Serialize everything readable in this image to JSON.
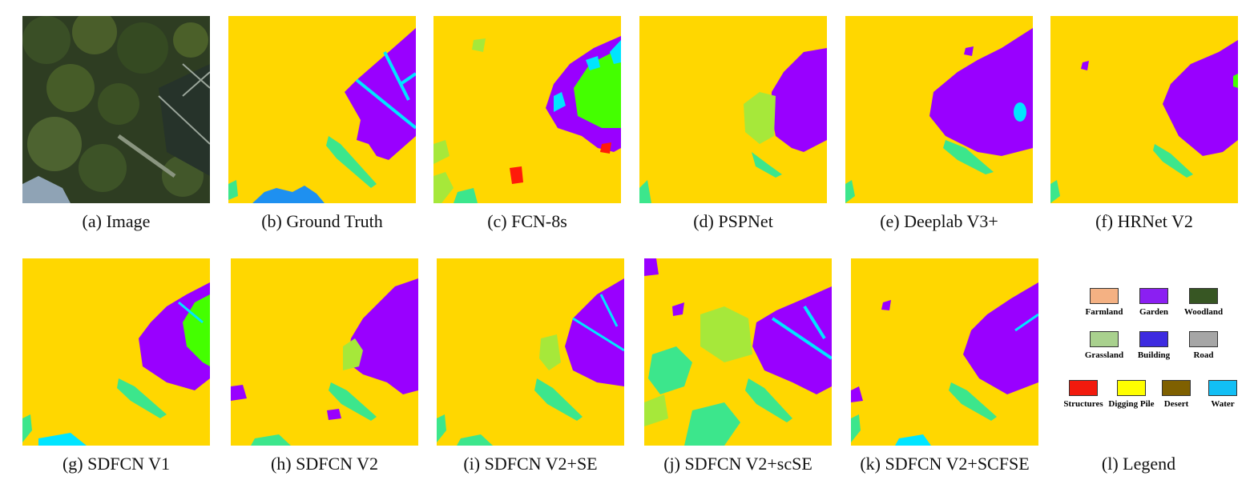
{
  "captions": {
    "a": "(a) Image",
    "b": "(b) Ground Truth",
    "c": "(c) FCN-8s",
    "d": "(d) PSPNet",
    "e": "(e) Deeplab V3+",
    "f": "(f) HRNet V2",
    "g": "(g) SDFCN V1",
    "h": "(h) SDFCN V2",
    "i": "(i) SDFCN V2+SE",
    "j": "(j) SDFCN V2+scSE",
    "k": "(k) SDFCN V2+SCFSE",
    "l": "(l) Legend"
  },
  "legend": [
    {
      "label": "Farmland",
      "color": "#F4B183"
    },
    {
      "label": "Garden",
      "color": "#8B1FF2"
    },
    {
      "label": "Woodland",
      "color": "#375623"
    },
    {
      "label": "Grassland",
      "color": "#A9D18E"
    },
    {
      "label": "Building",
      "color": "#3D2BE0"
    },
    {
      "label": "Road",
      "color": "#A6A6A6"
    },
    {
      "label": "Structures",
      "color": "#F21A0D"
    },
    {
      "label": "Digging Pile",
      "color": "#FFFF00"
    },
    {
      "label": "Desert",
      "color": "#7F6000"
    },
    {
      "label": "Water",
      "color": "#12BFF5"
    }
  ],
  "colors": {
    "background_class": "#FFD700",
    "garden": "#9900FF",
    "water_channel": "#00E5FF",
    "light_green": "#3CE68C",
    "bright_green": "#44FF00",
    "olive_green": "#A6E83A",
    "structures": "#FF1A0A",
    "blue_water": "#1E90F0"
  }
}
